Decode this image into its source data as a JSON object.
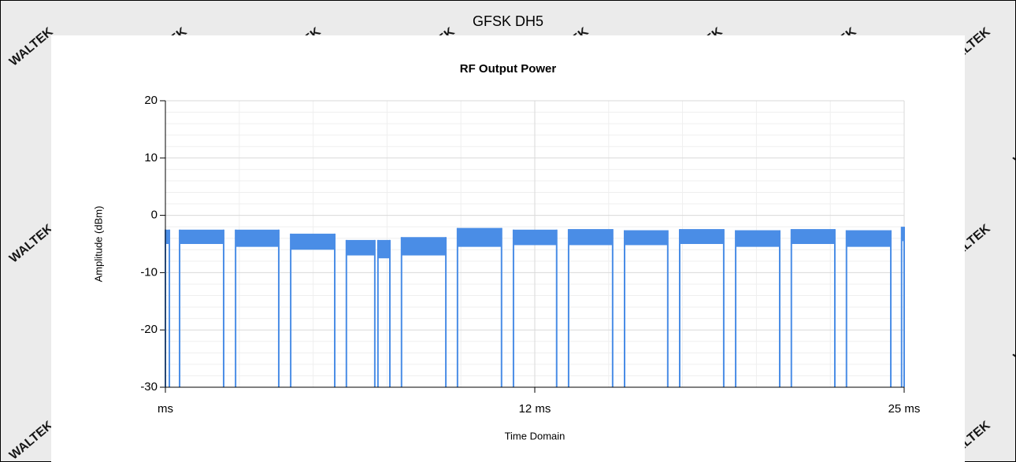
{
  "header": "GFSK DH5",
  "watermark": "WALTEK",
  "chart_data": {
    "type": "burst",
    "title": "RF Output Power",
    "x_label": "Time Domain",
    "y_label": "Amplitude (dBm)",
    "xlim": [
      -1,
      25
    ],
    "ylim": [
      -30,
      20
    ],
    "xticks": [
      {
        "value": -1,
        "label": "ms"
      },
      {
        "value": 12,
        "label": "12 ms"
      },
      {
        "value": 25,
        "label": "25 ms"
      }
    ],
    "yticks": [
      -30,
      -20,
      -10,
      0,
      10,
      20
    ],
    "xminor": [
      1.6,
      4.2,
      6.8,
      9.4,
      14.6,
      17.2,
      19.8,
      22.4
    ],
    "yminor": [
      -28,
      -26,
      -24,
      -22,
      -18,
      -16,
      -14,
      -12,
      -8,
      -6,
      -4,
      -2,
      2,
      4,
      6,
      8,
      12,
      14,
      16,
      18
    ],
    "grid": true,
    "color": "#4a8de6",
    "bursts": [
      {
        "start": -1,
        "end": -0.86,
        "top": -2.5,
        "bottom": -5
      },
      {
        "start": -0.5,
        "end": 1.05,
        "top": -2.5,
        "bottom": -5
      },
      {
        "start": 1.47,
        "end": 2.99,
        "top": -2.5,
        "bottom": -5.5
      },
      {
        "start": 3.41,
        "end": 4.96,
        "top": -3.2,
        "bottom": -6
      },
      {
        "start": 5.37,
        "end": 6.37,
        "top": -4.3,
        "bottom": -7
      },
      {
        "start": 6.48,
        "end": 6.9,
        "top": -4.3,
        "bottom": -7.5
      },
      {
        "start": 7.31,
        "end": 8.87,
        "top": -3.8,
        "bottom": -7
      },
      {
        "start": 9.28,
        "end": 10.83,
        "top": -2.2,
        "bottom": -5.5
      },
      {
        "start": 11.25,
        "end": 12.77,
        "top": -2.5,
        "bottom": -5.2
      },
      {
        "start": 13.19,
        "end": 14.74,
        "top": -2.4,
        "bottom": -5.2
      },
      {
        "start": 15.16,
        "end": 16.68,
        "top": -2.6,
        "bottom": -5.2
      },
      {
        "start": 17.1,
        "end": 18.65,
        "top": -2.4,
        "bottom": -5
      },
      {
        "start": 19.07,
        "end": 20.62,
        "top": -2.6,
        "bottom": -5.5
      },
      {
        "start": 21.03,
        "end": 22.56,
        "top": -2.4,
        "bottom": -5
      },
      {
        "start": 22.97,
        "end": 24.53,
        "top": -2.6,
        "bottom": -5.5
      },
      {
        "start": 24.91,
        "end": 25,
        "top": -2,
        "bottom": -4.5
      }
    ]
  }
}
